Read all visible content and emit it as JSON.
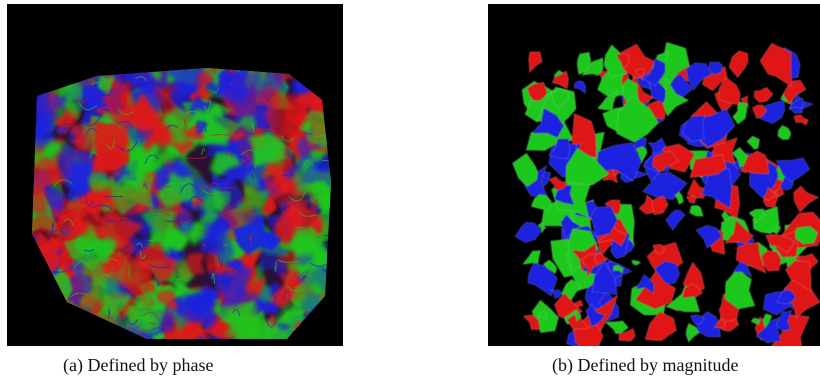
{
  "figure": {
    "panels": [
      {
        "caption": "(a) Defined by phase",
        "render_style": "wispy-volume"
      },
      {
        "caption": "(b) Defined by magnitude",
        "render_style": "solid-isosurface"
      }
    ],
    "colors": {
      "background": "#000000",
      "red": "#e01818",
      "green": "#1ec81e",
      "blue": "#1a22e0"
    }
  }
}
